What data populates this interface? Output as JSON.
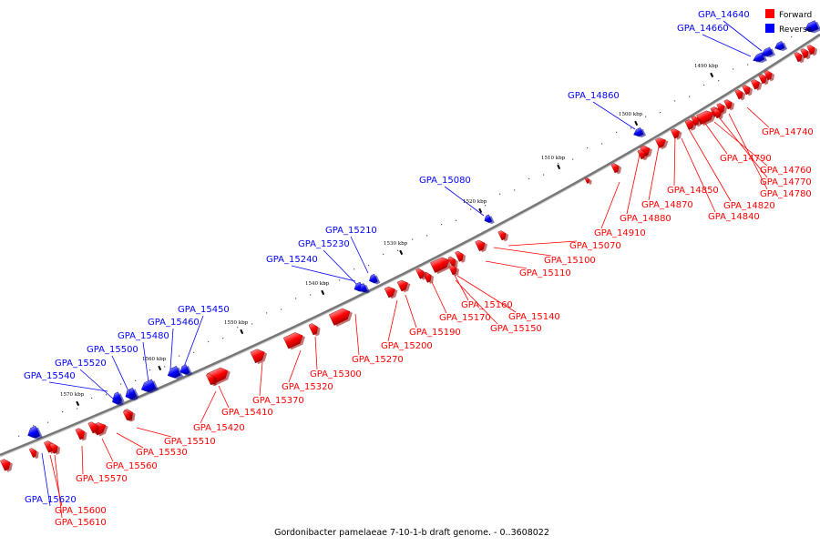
{
  "legend": [
    {
      "label": "Forward",
      "color": "#ff0000"
    },
    {
      "label": "Reverse",
      "color": "#0000ff"
    }
  ],
  "caption": "Gordonibacter pamelaeae 7-10-1-b draft genome. - 0..3608022",
  "kbp_ticks": [
    "1490 kbp",
    "1500 kbp",
    "1510 kbp",
    "1520 kbp",
    "1530 kbp",
    "1540 kbp",
    "1550 kbp",
    "1560 kbp",
    "1570 kbp"
  ],
  "reverse_genes": [
    "GPA_14640",
    "GPA_14660",
    "GPA_14860",
    "GPA_15080",
    "GPA_15210",
    "GPA_15230",
    "GPA_15240",
    "GPA_15450",
    "GPA_15460",
    "GPA_15480",
    "GPA_15500",
    "GPA_15520",
    "GPA_15540",
    "GPA_15620"
  ],
  "forward_genes": [
    "GPA_14740",
    "GPA_14790",
    "GPA_14760",
    "GPA_14770",
    "GPA_14780",
    "GPA_14850",
    "GPA_14820",
    "GPA_14870",
    "GPA_14840",
    "GPA_14880",
    "GPA_14910",
    "GPA_15070",
    "GPA_15100",
    "GPA_15110",
    "GPA_15160",
    "GPA_15140",
    "GPA_15170",
    "GPA_15150",
    "GPA_15190",
    "GPA_15200",
    "GPA_15270",
    "GPA_15300",
    "GPA_15320",
    "GPA_15370",
    "GPA_15410",
    "GPA_15420",
    "GPA_15510",
    "GPA_15530",
    "GPA_15560",
    "GPA_15570",
    "GPA_15600",
    "GPA_15610"
  ],
  "colors": {
    "forward": "#ff0000",
    "reverse": "#0000ff",
    "backbone": "#777777"
  }
}
